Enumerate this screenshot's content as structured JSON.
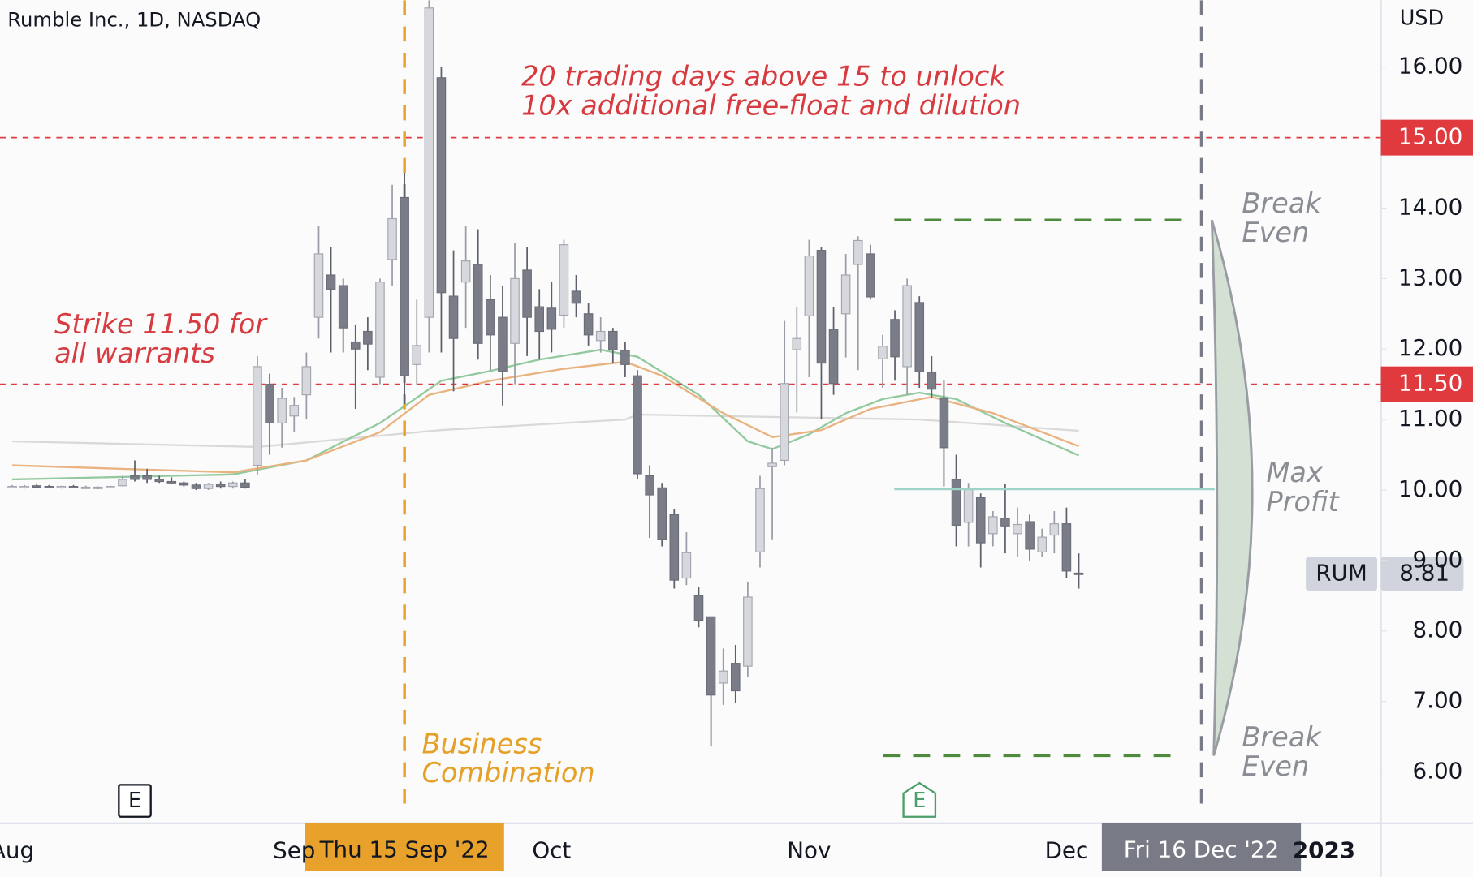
{
  "chart_data": {
    "type": "candlestick",
    "title": "Rumble Inc., 1D, NASDAQ",
    "y_axis_label": "USD",
    "up_color": "#d6d8de",
    "down_color": "#7a7d87",
    "categories": [
      "Aug",
      null,
      null,
      null,
      null,
      null,
      null,
      null,
      null,
      null,
      null,
      null,
      null,
      null,
      null,
      null,
      null,
      null,
      null,
      null,
      null,
      null,
      null,
      "Sep",
      null,
      null,
      null,
      null,
      null,
      null,
      null,
      null,
      null,
      null,
      null,
      null,
      null,
      null,
      null,
      null,
      null,
      null,
      null,
      null,
      "Oct",
      null,
      null,
      null,
      null,
      null,
      null,
      null,
      null,
      null,
      null,
      null,
      null,
      null,
      null,
      null,
      null,
      null,
      null,
      null,
      null,
      "Nov",
      null,
      null,
      null,
      null,
      null,
      null,
      null,
      null,
      null,
      null,
      null,
      null,
      null,
      null,
      null,
      null,
      null,
      null,
      null,
      null,
      "Dec",
      null,
      null,
      null,
      null,
      null,
      null,
      null,
      null,
      null,
      null,
      null,
      null,
      null,
      null,
      null,
      null,
      null,
      null,
      null,
      null,
      "2023",
      null,
      null,
      null,
      null
    ],
    "open": [
      10.05,
      10.04,
      10.06,
      10.05,
      10.04,
      10.05,
      10.04,
      10.03,
      10.04,
      10.06,
      10.2,
      10.2,
      10.15,
      10.12,
      10.1,
      10.07,
      10.02,
      10.08,
      10.05,
      10.1,
      10.35,
      11.5,
      10.95,
      11.05,
      11.35,
      12.45,
      13.05,
      12.9,
      12.1,
      12.25,
      11.6,
      13.27,
      14.15,
      11.78,
      12.45,
      15.85,
      12.75,
      12.95,
      13.2,
      12.7,
      12.45,
      12.08,
      13.12,
      12.6,
      12.58,
      12.48,
      12.82,
      12.5,
      12.12,
      12.25,
      11.98,
      11.62,
      10.2,
      10.03,
      9.65,
      8.75,
      8.5,
      8.2,
      7.26,
      7.54,
      7.5,
      9.12,
      10.33,
      10.42,
      11.99,
      12.47,
      13.4,
      12.28,
      12.5,
      13.2,
      13.35,
      11.86,
      12.42,
      11.75,
      12.66,
      11.67,
      11.3,
      10.15,
      9.54,
      9.89,
      9.38,
      9.6,
      9.38,
      9.55,
      9.12,
      9.36,
      9.52,
      8.82,
      null,
      null,
      null,
      null,
      null,
      null,
      null,
      null,
      null,
      null,
      null,
      null,
      null,
      null,
      null,
      null,
      null,
      null,
      null,
      null,
      null,
      null,
      null,
      null
    ],
    "high": [
      10.07,
      10.07,
      10.08,
      10.07,
      10.06,
      10.07,
      10.06,
      10.05,
      10.06,
      10.2,
      10.42,
      10.3,
      10.2,
      10.18,
      10.12,
      10.1,
      10.1,
      10.12,
      10.12,
      10.15,
      11.9,
      11.65,
      11.45,
      11.32,
      11.95,
      13.75,
      13.45,
      13.0,
      12.35,
      12.45,
      13.0,
      14.33,
      14.5,
      12.7,
      16.95,
      16.0,
      13.4,
      13.75,
      13.7,
      13.05,
      12.9,
      13.5,
      13.45,
      12.85,
      12.95,
      13.55,
      13.05,
      12.65,
      12.45,
      12.3,
      12.1,
      11.7,
      10.35,
      10.1,
      9.73,
      9.4,
      8.62,
      8.2,
      7.75,
      7.8,
      8.7,
      10.2,
      10.6,
      12.4,
      12.6,
      13.55,
      13.45,
      12.6,
      13.35,
      13.6,
      13.48,
      12.2,
      12.55,
      13.0,
      12.75,
      11.9,
      11.55,
      10.5,
      10.1,
      9.95,
      9.7,
      10.08,
      9.75,
      9.65,
      9.45,
      9.7,
      9.75,
      9.1,
      null,
      null,
      null,
      null,
      null,
      null,
      null,
      null,
      null,
      null,
      null,
      null,
      null,
      null,
      null,
      null,
      null,
      null,
      null,
      null,
      null,
      null,
      null,
      null
    ],
    "low": [
      10.03,
      10.02,
      10.04,
      10.03,
      10.02,
      10.03,
      10.02,
      10.01,
      10.02,
      10.05,
      10.12,
      10.1,
      10.1,
      10.08,
      10.05,
      10.0,
      10.0,
      10.02,
      10.02,
      10.02,
      10.22,
      10.5,
      10.6,
      10.82,
      11.0,
      12.15,
      11.95,
      11.95,
      11.15,
      11.7,
      11.5,
      12.9,
      11.22,
      11.5,
      11.95,
      11.95,
      11.4,
      12.3,
      11.85,
      11.7,
      11.2,
      11.5,
      11.9,
      11.85,
      11.95,
      12.3,
      12.45,
      12.05,
      11.95,
      11.8,
      11.6,
      10.15,
      9.32,
      9.2,
      8.6,
      8.65,
      8.05,
      6.36,
      6.95,
      6.98,
      7.35,
      8.9,
      9.3,
      10.35,
      11.1,
      11.6,
      11.0,
      11.35,
      11.88,
      11.7,
      12.7,
      11.45,
      11.55,
      11.35,
      11.45,
      11.3,
      10.05,
      9.2,
      9.2,
      8.9,
      9.2,
      9.1,
      9.05,
      9.0,
      9.05,
      9.1,
      8.75,
      8.6,
      null,
      null,
      null,
      null,
      null,
      null,
      null,
      null,
      null,
      null,
      null,
      null,
      null,
      null,
      null,
      null,
      null,
      null,
      null,
      null,
      null,
      null,
      null,
      null
    ],
    "close": [
      10.05,
      10.05,
      10.05,
      10.04,
      10.05,
      10.04,
      10.04,
      10.04,
      10.05,
      10.15,
      10.15,
      10.15,
      10.12,
      10.1,
      10.07,
      10.02,
      10.08,
      10.05,
      10.1,
      10.04,
      11.75,
      10.95,
      11.3,
      11.2,
      11.75,
      13.35,
      12.85,
      12.3,
      12.0,
      12.07,
      12.95,
      13.85,
      11.62,
      12.05,
      16.84,
      12.8,
      12.15,
      13.25,
      12.08,
      12.2,
      11.68,
      13.0,
      12.45,
      12.25,
      12.28,
      13.48,
      12.65,
      12.2,
      12.25,
      11.99,
      11.78,
      10.23,
      9.93,
      9.3,
      8.72,
      9.11,
      8.15,
      7.09,
      7.43,
      7.15,
      8.48,
      10.02,
      10.38,
      11.51,
      12.15,
      13.32,
      11.8,
      11.51,
      13.05,
      13.54,
      12.74,
      12.04,
      11.89,
      12.9,
      11.68,
      11.43,
      10.6,
      9.5,
      10.02,
      9.25,
      9.62,
      9.49,
      9.51,
      9.16,
      9.33,
      9.52,
      8.85,
      8.81,
      null,
      null,
      null,
      null,
      null,
      null,
      null,
      null,
      null,
      null,
      null,
      null,
      null,
      null,
      null,
      null,
      null,
      null,
      null,
      null,
      null,
      null,
      null,
      null
    ],
    "moving_averages": [
      {
        "color": "#d9d9d9",
        "x": [
          0,
          20,
          35,
          50,
          51,
          74,
          87
        ],
        "values": [
          10.69,
          10.61,
          10.85,
          11.0,
          11.07,
          11.0,
          10.84
        ]
      },
      {
        "color": "#93c99e",
        "x": [
          0,
          18,
          24,
          30,
          35,
          39,
          43,
          48,
          51,
          56,
          60,
          62,
          65,
          68,
          71,
          74,
          77,
          81,
          87
        ],
        "values": [
          10.15,
          10.22,
          10.42,
          10.95,
          11.55,
          11.69,
          11.85,
          11.99,
          11.89,
          11.35,
          10.69,
          10.58,
          10.79,
          11.09,
          11.29,
          11.38,
          11.29,
          10.95,
          10.49
        ]
      },
      {
        "color": "#e9b27e",
        "x": [
          0,
          18,
          24,
          30,
          34,
          39,
          45,
          50,
          53,
          58,
          62,
          66,
          70,
          75,
          80,
          87
        ],
        "values": [
          10.35,
          10.25,
          10.42,
          10.82,
          11.35,
          11.55,
          11.72,
          11.82,
          11.62,
          11.09,
          10.75,
          10.85,
          11.15,
          11.32,
          11.09,
          10.62
        ]
      }
    ],
    "ylim": [
      5.27,
      16.95
    ],
    "yticks": [
      {
        "value": 6,
        "label": "6.00"
      },
      {
        "value": 7,
        "label": "7.00"
      },
      {
        "value": 8,
        "label": "8.00"
      },
      {
        "value": 9,
        "label": "9.00"
      },
      {
        "value": 10,
        "label": "10.00"
      },
      {
        "value": 11,
        "label": "11.00"
      },
      {
        "value": 12,
        "label": "12.00"
      },
      {
        "value": 13,
        "label": "13.00"
      },
      {
        "value": 14,
        "label": "14.00"
      },
      {
        "value": 16,
        "label": "16.00"
      }
    ],
    "horizontal_lines": [
      {
        "value": 15,
        "label": "15.00",
        "color": "#e0393e"
      },
      {
        "value": 11.5,
        "label": "11.50",
        "color": "#e0393e"
      }
    ],
    "vertical_lines": [
      {
        "index": 32,
        "label": "Thu 15 Sep '22",
        "color": "#e8a12a"
      },
      {
        "index": 97,
        "label": "Fri 16 Dec '22",
        "color": "#787b86"
      }
    ],
    "last_price": {
      "symbol": "RUM",
      "value": 8.81
    },
    "earnings": [
      {
        "index": 10,
        "label": "E",
        "color": "#131722"
      },
      {
        "index": 74,
        "label": "E",
        "color": "#4c9e6a"
      }
    ],
    "strategy": {
      "upper": 13.83,
      "lower": 6.23,
      "target": 10.01,
      "upper_label": [
        "Break",
        "Even"
      ],
      "target_label": [
        "Max",
        "Profit"
      ],
      "lower_label": [
        "Break",
        "Even"
      ]
    },
    "annotations": {
      "dilution": [
        "20 trading days above 15 to unlock",
        "10x additional free-float and dilution"
      ],
      "strike": [
        "Strike 11.50 for",
        "all warrants"
      ],
      "business": [
        "Business",
        "Combination"
      ]
    }
  }
}
